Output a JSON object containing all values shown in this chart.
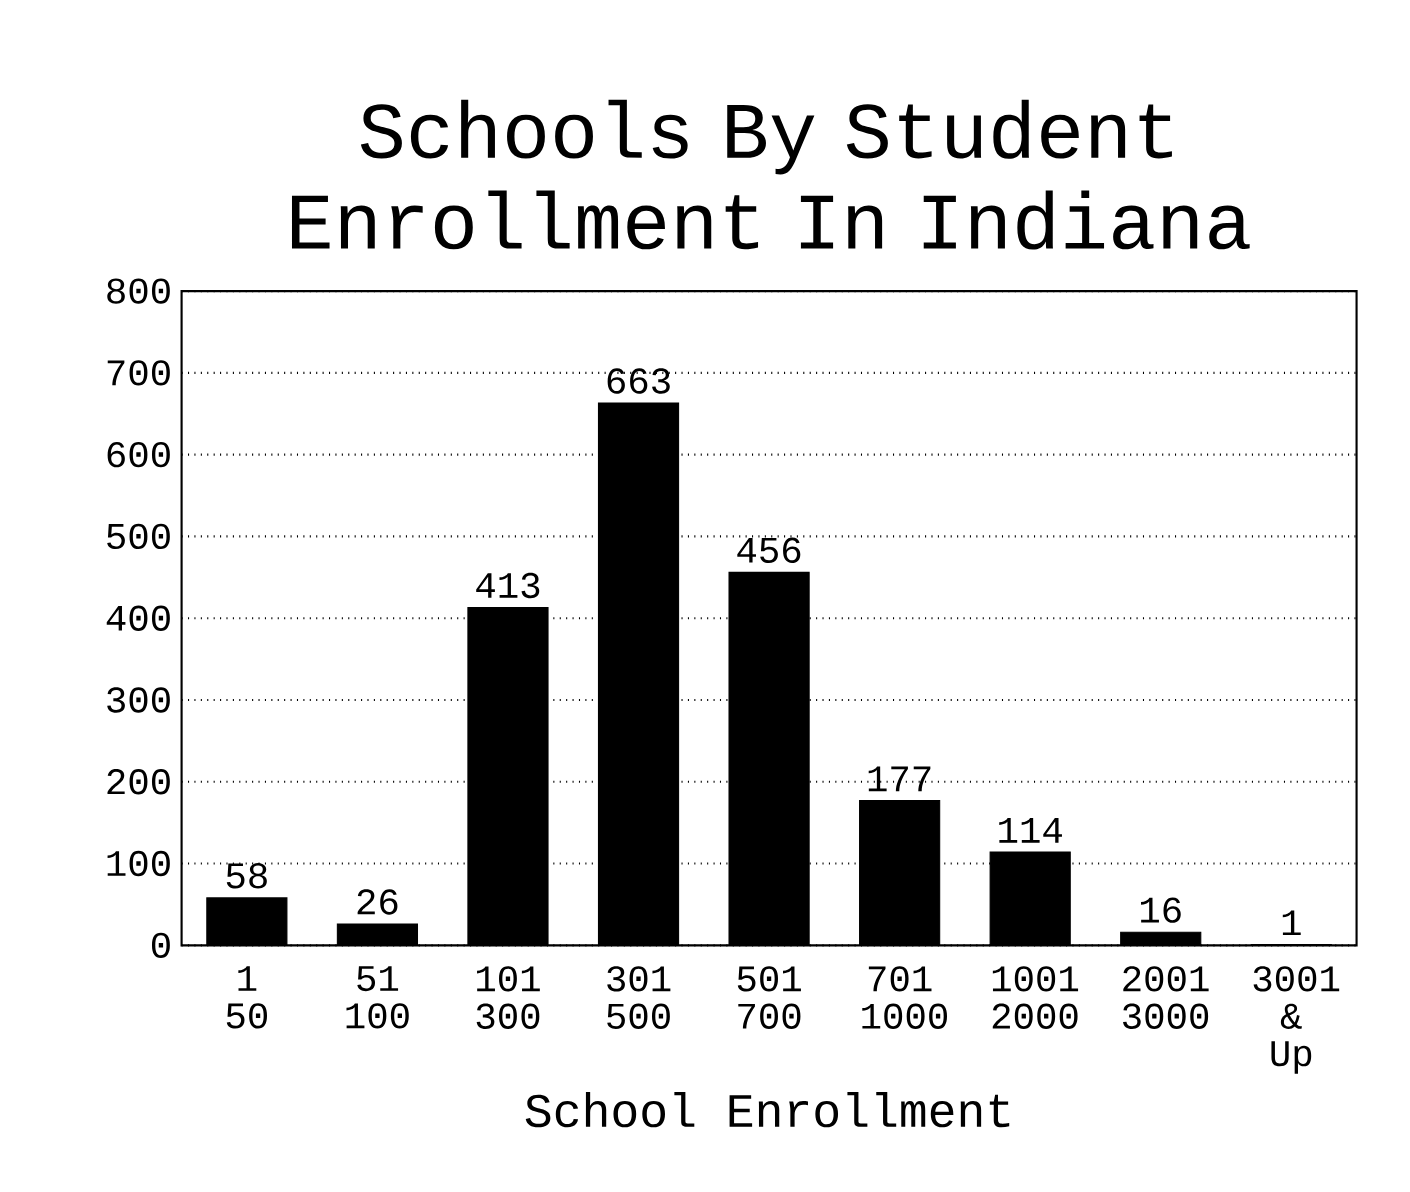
{
  "chart_data": {
    "type": "bar",
    "title": "Schools By Student Enrollment In Indiana",
    "xlabel": "School Enrollment",
    "categories": [
      "1 50",
      "51 100",
      "101 300",
      "301 500",
      "501 700",
      "701 1000",
      "1001 2000",
      "2001 3000",
      "3001 & Up"
    ],
    "values": [
      58,
      26,
      413,
      663,
      456,
      177,
      114,
      16,
      1
    ],
    "color": "#000000",
    "ylim": [
      0,
      800
    ],
    "yticks": [
      0,
      100,
      200,
      300,
      400,
      500,
      600,
      700,
      800
    ],
    "grid": "y",
    "data_labels": true
  }
}
